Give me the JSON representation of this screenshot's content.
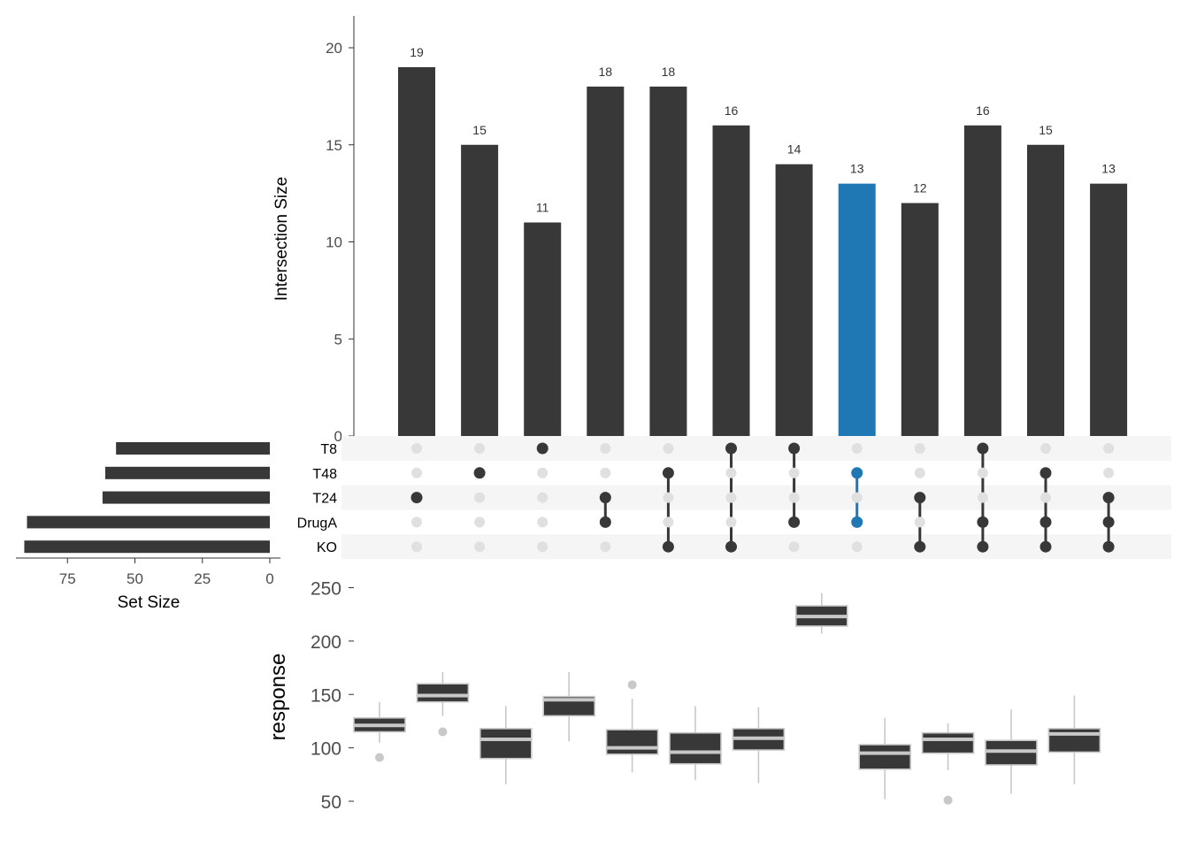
{
  "chart_data": [
    {
      "type": "bar",
      "panel": "intersection-size",
      "ylabel": "Intersection Size",
      "ylim": [
        0,
        22
      ],
      "yticks": [
        "0",
        "5",
        "10",
        "15",
        "20"
      ],
      "values": [
        19,
        15,
        11,
        18,
        18,
        16,
        14,
        13,
        12,
        16,
        15,
        13
      ],
      "value_labels": [
        "19",
        "15",
        "11",
        "18",
        "18",
        "16",
        "14",
        "13",
        "12",
        "16",
        "15",
        "13"
      ],
      "highlight_index": 7,
      "colors": {
        "bar": "#383838",
        "highlight": "#1f77b4"
      }
    },
    {
      "type": "matrix",
      "panel": "set-membership",
      "sets": [
        "T8",
        "T48",
        "T24",
        "DrugA",
        "KO"
      ],
      "intersections": [
        [
          "T24"
        ],
        [
          "T48"
        ],
        [
          "T8"
        ],
        [
          "T24",
          "DrugA"
        ],
        [
          "T48",
          "KO"
        ],
        [
          "T8",
          "KO"
        ],
        [
          "T8",
          "DrugA"
        ],
        [
          "T48",
          "DrugA"
        ],
        [
          "T24",
          "KO"
        ],
        [
          "T8",
          "DrugA",
          "KO"
        ],
        [
          "T48",
          "DrugA",
          "KO"
        ],
        [
          "T24",
          "DrugA",
          "KO"
        ]
      ],
      "colors": {
        "active": "#383838",
        "inactive": "#e0e0e0",
        "highlight": "#1f77b4",
        "stripe": "#f5f5f5"
      }
    },
    {
      "type": "bar",
      "panel": "set-size",
      "orientation": "horizontal",
      "xlabel": "Set Size",
      "xticks": [
        "75",
        "50",
        "25",
        "0"
      ],
      "xlim": [
        0,
        95
      ],
      "categories": [
        "T8",
        "T48",
        "T24",
        "DrugA",
        "KO"
      ],
      "values": [
        57,
        61,
        62,
        90,
        91
      ]
    },
    {
      "type": "box",
      "panel": "response",
      "ylabel": "response",
      "ylim": [
        40,
        260
      ],
      "yticks": [
        "50",
        "100",
        "150",
        "200",
        "250"
      ],
      "boxes": [
        {
          "whislo": 105,
          "q1": 115,
          "med": 121,
          "q3": 128,
          "whishi": 143,
          "fliers": [
            91
          ]
        },
        {
          "whislo": 130,
          "q1": 143,
          "med": 149,
          "q3": 160,
          "whishi": 171,
          "fliers": [
            115
          ]
        },
        {
          "whislo": 66,
          "q1": 90,
          "med": 108,
          "q3": 118,
          "whishi": 139,
          "fliers": []
        },
        {
          "whislo": 106,
          "q1": 130,
          "med": 145,
          "q3": 148,
          "whishi": 171,
          "fliers": []
        },
        {
          "whislo": 77,
          "q1": 94,
          "med": 100,
          "q3": 117,
          "whishi": 146,
          "fliers": [
            159
          ]
        },
        {
          "whislo": 70,
          "q1": 85,
          "med": 96,
          "q3": 114,
          "whishi": 139,
          "fliers": []
        },
        {
          "whislo": 67,
          "q1": 98,
          "med": 109,
          "q3": 118,
          "whishi": 138,
          "fliers": []
        },
        {
          "whislo": 207,
          "q1": 214,
          "med": 223,
          "q3": 233,
          "whishi": 245,
          "fliers": []
        },
        {
          "whislo": 52,
          "q1": 80,
          "med": 95,
          "q3": 103,
          "whishi": 128,
          "fliers": []
        },
        {
          "whislo": 79,
          "q1": 95,
          "med": 108,
          "q3": 114,
          "whishi": 123,
          "fliers": [
            51
          ]
        },
        {
          "whislo": 57,
          "q1": 84,
          "med": 97,
          "q3": 107,
          "whishi": 136,
          "fliers": []
        },
        {
          "whislo": 66,
          "q1": 96,
          "med": 113,
          "q3": 118,
          "whishi": 149,
          "fliers": []
        }
      ],
      "colors": {
        "box": "#383838",
        "line": "#c8c8c8",
        "flier": "#c8c8c8"
      }
    }
  ]
}
